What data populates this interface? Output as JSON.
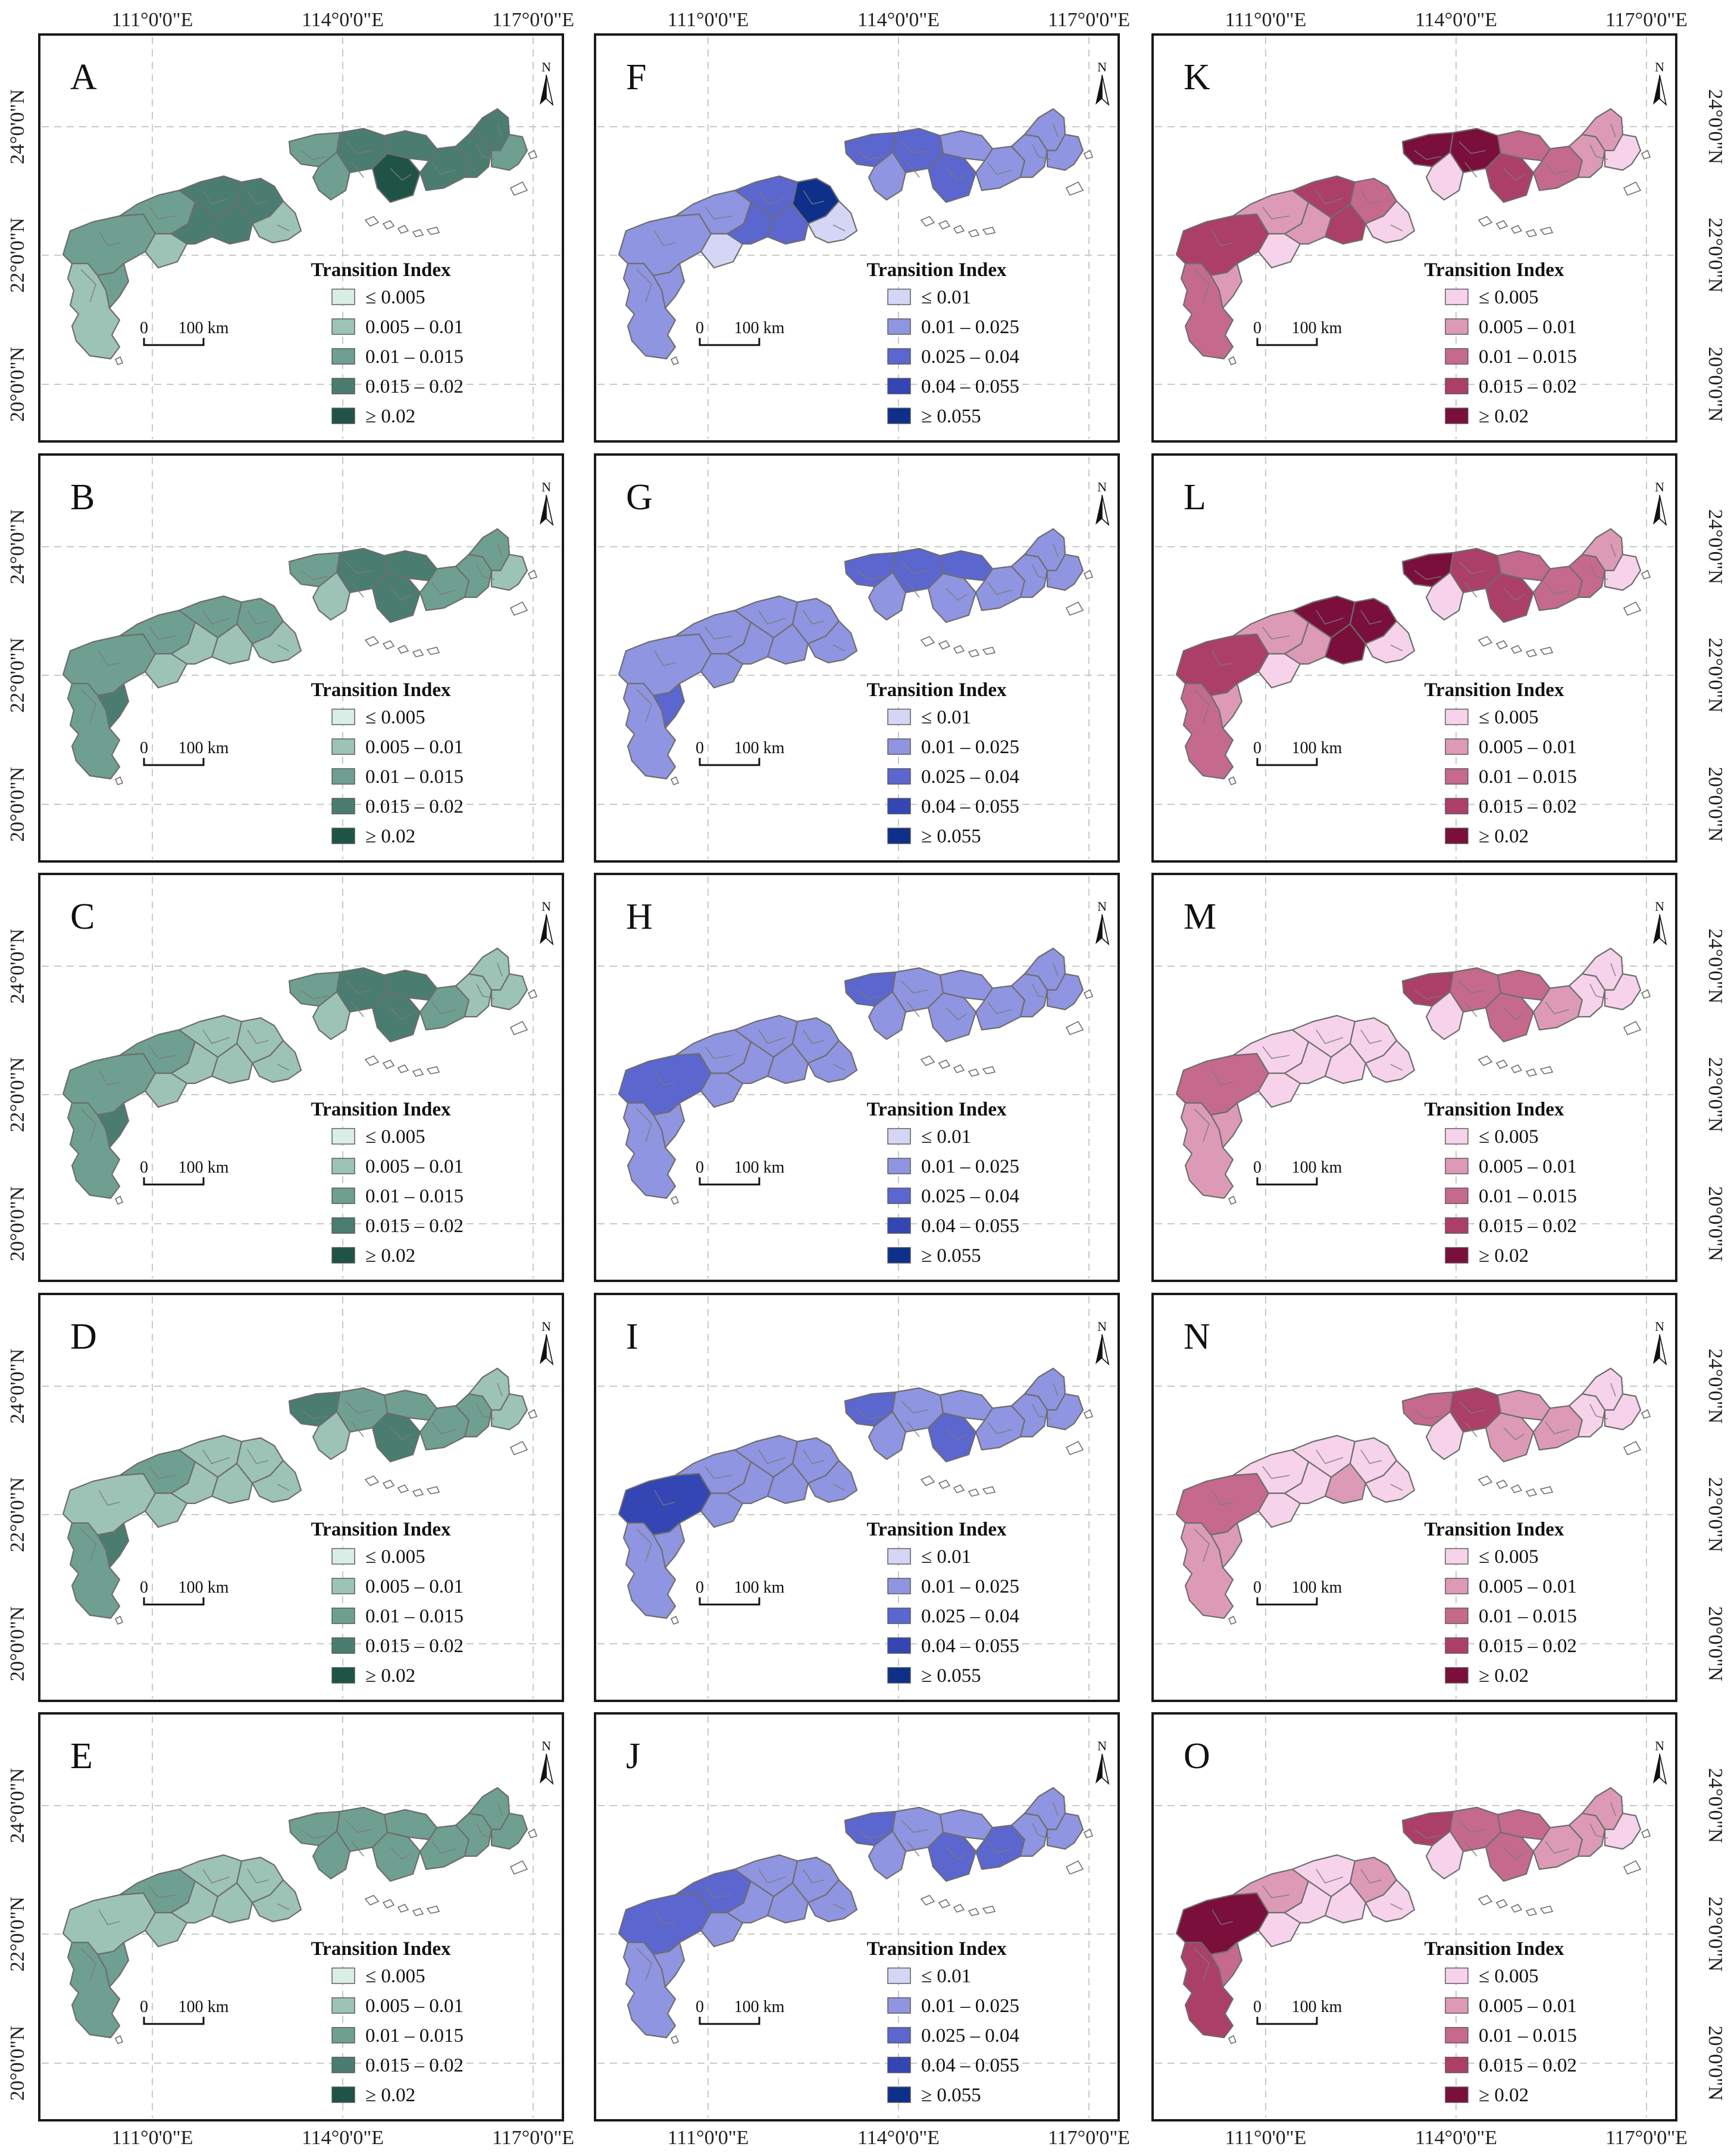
{
  "axes": {
    "top_longitude_labels": [
      "111°0'0\"E",
      "114°0'0\"E",
      "117°0'0\"E"
    ],
    "bottom_longitude_labels": [
      "111°0'0\"E",
      "114°0'0\"E",
      "117°0'0\"E"
    ],
    "left_latitude_labels": [
      "24°0'0\"N",
      "22°0'0\"N",
      "20°0'0\"N"
    ],
    "right_latitude_labels": [
      "24°0'0\"N",
      "22°0'0\"N",
      "20°0'0\"N"
    ]
  },
  "legend_title": "Transition Index",
  "scale_bar": {
    "zero": "0",
    "distance": "100 km"
  },
  "north_label": "N",
  "color_schemes": {
    "green": {
      "labels": [
        "≤ 0.005",
        "0.005 – 0.01",
        "0.01 – 0.015",
        "0.015 – 0.02",
        "≥ 0.02"
      ],
      "colors": [
        "#d9efe6",
        "#9cc3b6",
        "#6f9f90",
        "#4a7d6f",
        "#1f5346"
      ]
    },
    "blue": {
      "labels": [
        "≤ 0.01",
        "0.01 – 0.025",
        "0.025 – 0.04",
        "0.04 – 0.055",
        "≥ 0.055"
      ],
      "colors": [
        "#d5d5f5",
        "#8f95e0",
        "#5c66cf",
        "#3446b3",
        "#0e2f8a"
      ]
    },
    "pink": {
      "labels": [
        "≤ 0.005",
        "0.005 – 0.01",
        "0.01 – 0.015",
        "0.015 – 0.02",
        "≥ 0.02"
      ],
      "colors": [
        "#f6d3ea",
        "#dc9ab7",
        "#c56a8c",
        "#ac3f68",
        "#7a0f3c"
      ]
    }
  },
  "panels": [
    {
      "letter": "A",
      "scheme": "green",
      "classes": [
        1,
        2,
        2,
        2,
        1,
        3,
        3,
        3,
        3,
        1,
        2,
        3,
        4,
        3,
        3,
        3,
        3,
        2,
        2
      ]
    },
    {
      "letter": "B",
      "scheme": "green",
      "classes": [
        2,
        2,
        3,
        2,
        1,
        2,
        2,
        1,
        1,
        1,
        2,
        3,
        3,
        3,
        2,
        2,
        2,
        1,
        1
      ]
    },
    {
      "letter": "C",
      "scheme": "green",
      "classes": [
        2,
        2,
        3,
        2,
        1,
        1,
        1,
        1,
        1,
        1,
        2,
        3,
        3,
        3,
        2,
        1,
        1,
        1,
        1
      ]
    },
    {
      "letter": "D",
      "scheme": "green",
      "classes": [
        2,
        1,
        3,
        2,
        1,
        1,
        1,
        1,
        1,
        1,
        3,
        2,
        3,
        2,
        2,
        2,
        1,
        1,
        1
      ]
    },
    {
      "letter": "E",
      "scheme": "green",
      "classes": [
        2,
        1,
        2,
        2,
        1,
        1,
        1,
        1,
        1,
        1,
        2,
        2,
        2,
        2,
        2,
        2,
        2,
        2,
        2
      ]
    },
    {
      "letter": "F",
      "scheme": "blue",
      "classes": [
        1,
        1,
        1,
        1,
        0,
        2,
        4,
        2,
        2,
        0,
        2,
        2,
        2,
        1,
        1,
        1,
        1,
        1,
        1
      ]
    },
    {
      "letter": "G",
      "scheme": "blue",
      "classes": [
        1,
        1,
        2,
        1,
        1,
        1,
        1,
        1,
        1,
        1,
        2,
        2,
        1,
        2,
        1,
        1,
        1,
        1,
        1
      ]
    },
    {
      "letter": "H",
      "scheme": "blue",
      "classes": [
        1,
        2,
        1,
        1,
        1,
        1,
        1,
        1,
        1,
        1,
        2,
        1,
        1,
        1,
        1,
        1,
        1,
        1,
        1
      ]
    },
    {
      "letter": "I",
      "scheme": "blue",
      "classes": [
        1,
        3,
        1,
        1,
        1,
        1,
        1,
        1,
        1,
        1,
        2,
        1,
        2,
        1,
        1,
        1,
        1,
        1,
        1
      ]
    },
    {
      "letter": "J",
      "scheme": "blue",
      "classes": [
        1,
        2,
        1,
        2,
        1,
        1,
        1,
        1,
        1,
        1,
        2,
        1,
        2,
        1,
        2,
        1,
        1,
        1,
        1
      ]
    },
    {
      "letter": "K",
      "scheme": "pink",
      "classes": [
        2,
        3,
        1,
        1,
        0,
        3,
        2,
        3,
        1,
        0,
        4,
        4,
        3,
        2,
        2,
        1,
        1,
        0,
        0
      ]
    },
    {
      "letter": "L",
      "scheme": "pink",
      "classes": [
        2,
        3,
        1,
        1,
        0,
        4,
        4,
        4,
        1,
        0,
        4,
        3,
        3,
        2,
        2,
        2,
        1,
        0,
        0
      ]
    },
    {
      "letter": "M",
      "scheme": "pink",
      "classes": [
        1,
        2,
        1,
        0,
        0,
        0,
        0,
        0,
        0,
        0,
        3,
        2,
        2,
        2,
        1,
        0,
        0,
        0,
        0
      ]
    },
    {
      "letter": "N",
      "scheme": "pink",
      "classes": [
        1,
        2,
        1,
        0,
        0,
        0,
        0,
        1,
        0,
        0,
        2,
        3,
        1,
        1,
        1,
        0,
        0,
        0,
        0
      ]
    },
    {
      "letter": "O",
      "scheme": "pink",
      "classes": [
        3,
        4,
        2,
        1,
        0,
        0,
        1,
        0,
        0,
        0,
        3,
        2,
        2,
        2,
        1,
        1,
        1,
        0,
        0
      ]
    }
  ]
}
